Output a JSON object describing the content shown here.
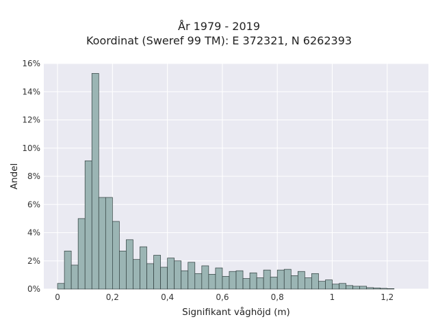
{
  "chart_data": {
    "type": "bar",
    "title": "År 1979 - 2019",
    "subtitle": "Koordinat (Sweref 99 TM): E 372321, N 6262393",
    "xlabel": "Signifikant våghöjd (m)",
    "ylabel": "Andel",
    "xlim": [
      -0.05,
      1.35
    ],
    "ylim": [
      0,
      16
    ],
    "grid": true,
    "bin_width": 0.025,
    "bin_start": 0.0,
    "x_ticks": [
      "0",
      "0,2",
      "0,4",
      "0,6",
      "0,8",
      "1",
      "1,2"
    ],
    "y_ticks": [
      "0%",
      "2%",
      "4%",
      "6%",
      "8%",
      "10%",
      "12%",
      "14%",
      "16%"
    ],
    "values": [
      0.4,
      2.7,
      1.7,
      5.0,
      9.1,
      15.3,
      6.5,
      6.5,
      4.8,
      2.7,
      3.5,
      2.1,
      3.0,
      1.8,
      2.4,
      1.55,
      2.2,
      2.0,
      1.3,
      1.9,
      1.1,
      1.65,
      1.05,
      1.5,
      0.9,
      1.25,
      1.3,
      0.75,
      1.15,
      0.8,
      1.35,
      0.85,
      1.35,
      1.4,
      0.95,
      1.25,
      0.8,
      1.1,
      0.55,
      0.65,
      0.35,
      0.4,
      0.25,
      0.2,
      0.2,
      0.1,
      0.08,
      0.05,
      0.03
    ],
    "bar_color": "#9bb5b4",
    "edge_color": "#2f3d3d",
    "background_color": "#eaeaf2"
  }
}
